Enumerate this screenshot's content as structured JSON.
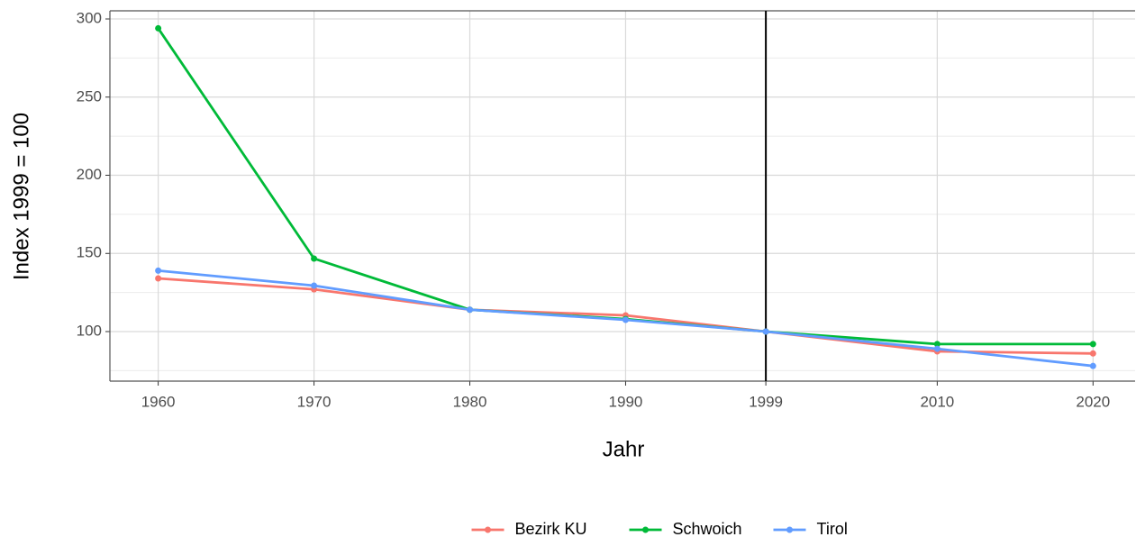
{
  "chart_data": {
    "type": "line",
    "xlabel": "Jahr",
    "ylabel": "Index 1999 = 100",
    "x": [
      1960,
      1970,
      1980,
      1990,
      1999,
      2010,
      2020
    ],
    "series": [
      {
        "name": "Bezirk KU",
        "color": "#F8766D",
        "values": [
          134,
          127,
          114,
          110.4,
          100,
          87.3,
          86
        ]
      },
      {
        "name": "Schwoich",
        "color": "#00BA38",
        "values": [
          294,
          146.7,
          114,
          108,
          100,
          92,
          92
        ]
      },
      {
        "name": "Tirol",
        "color": "#619CFF",
        "values": [
          139,
          129.4,
          114,
          107.5,
          100,
          89,
          78
        ]
      }
    ],
    "xlim": [
      1956.9,
      2022.7
    ],
    "ylim": [
      68.3,
      305.2
    ],
    "xticks": [
      1960,
      1970,
      1980,
      1990,
      1999,
      2010,
      2020
    ],
    "yticks": [
      100,
      150,
      200,
      250,
      300
    ],
    "yminorticks": [
      75,
      125,
      175,
      225,
      275
    ],
    "vline": 1999,
    "grid": true,
    "legend": "bottom"
  }
}
